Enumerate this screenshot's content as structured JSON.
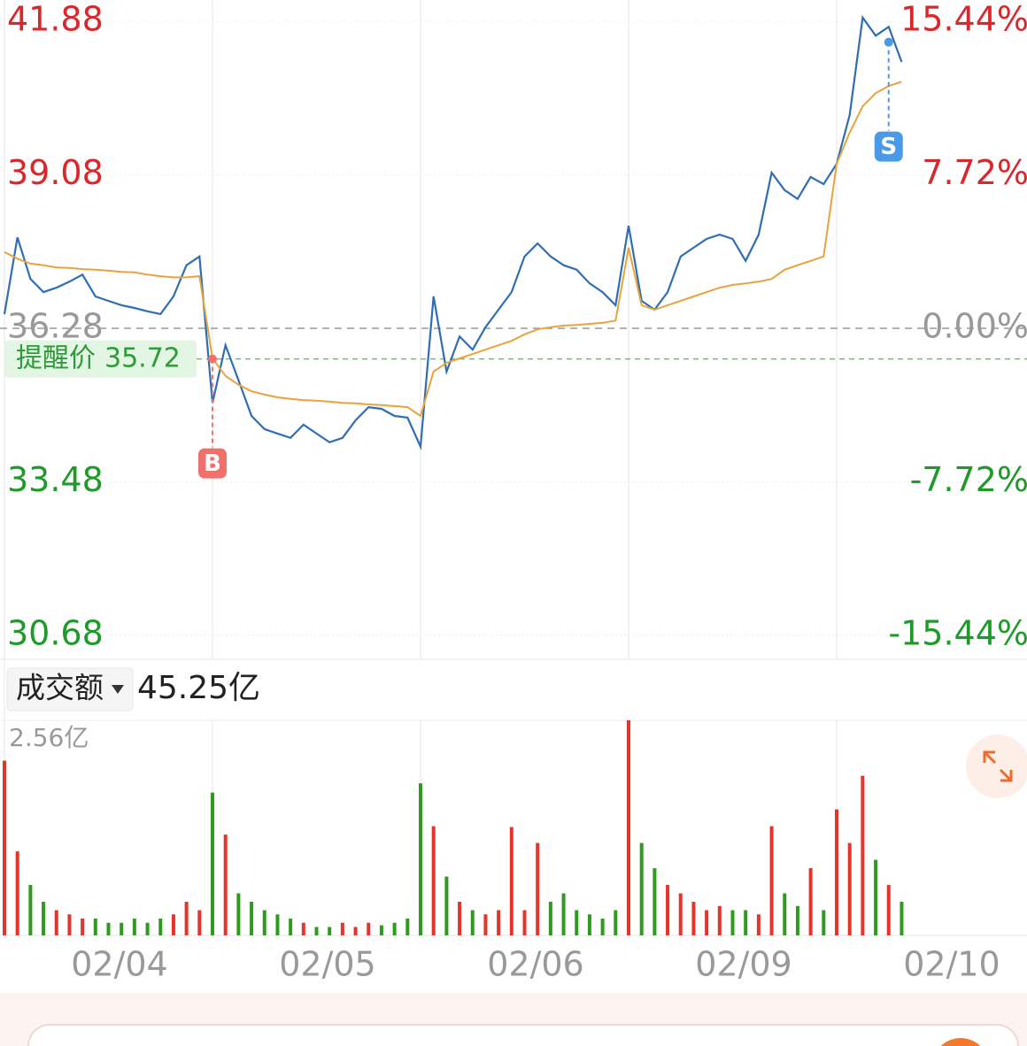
{
  "chart_data": {
    "type": "line",
    "ylim": [
      30.24,
      42.27
    ],
    "yticks": [
      41.88,
      39.08,
      36.28,
      33.48,
      30.68
    ],
    "y2lim": [
      -16.65,
      16.51
    ],
    "y2ticks": [
      {
        "value": 15.44,
        "label": "15.44%"
      },
      {
        "value": 7.72,
        "label": "7.72%"
      },
      {
        "value": 0,
        "label": "0.00%"
      },
      {
        "value": -7.72,
        "label": "-7.72%"
      },
      {
        "value": -15.44,
        "label": "-15.44%"
      }
    ],
    "xlim": [
      0,
      80
    ],
    "xticks": [
      {
        "value": 8.85,
        "label": "02/04"
      },
      {
        "value": 24.85,
        "label": "02/05"
      },
      {
        "value": 40.85,
        "label": "02/06"
      },
      {
        "value": 56.85,
        "label": "02/09"
      },
      {
        "value": 72.85,
        "label": "02/10"
      }
    ],
    "day_separators": [
      16,
      32,
      48,
      64
    ],
    "x": [
      0,
      1,
      2,
      3,
      4,
      5,
      6,
      7,
      8,
      9,
      10,
      11,
      12,
      13,
      14,
      15,
      16,
      17,
      18,
      19,
      20,
      21,
      22,
      23,
      24,
      25,
      26,
      27,
      28,
      29,
      30,
      31,
      32,
      33,
      34,
      35,
      36,
      37,
      38,
      39,
      40,
      41,
      42,
      43,
      44,
      45,
      46,
      47,
      48,
      49,
      50,
      51,
      52,
      53,
      54,
      55,
      56,
      57,
      58,
      59,
      60,
      61,
      62,
      63,
      64,
      65,
      66,
      67,
      68,
      69
    ],
    "series": [
      {
        "color": "#2f6db5",
        "values": [
          36.54,
          37.94,
          37.18,
          36.94,
          37.02,
          37.13,
          37.26,
          36.86,
          36.78,
          36.7,
          36.65,
          36.59,
          36.54,
          36.86,
          37.43,
          37.59,
          34.92,
          35.97,
          35.33,
          34.68,
          34.44,
          34.36,
          34.28,
          34.52,
          34.36,
          34.2,
          34.28,
          34.6,
          34.84,
          34.81,
          34.68,
          34.65,
          34.12,
          36.86,
          35.49,
          36.13,
          35.89,
          36.3,
          36.62,
          36.94,
          37.59,
          37.83,
          37.59,
          37.43,
          37.35,
          37.1,
          36.94,
          36.7,
          38.15,
          36.78,
          36.62,
          36.94,
          37.59,
          37.75,
          37.91,
          37.99,
          37.91,
          37.51,
          37.99,
          39.12,
          38.8,
          38.64,
          39.04,
          38.91,
          39.28,
          40.17,
          41.95,
          41.62,
          41.78,
          41.14
        ]
      },
      {
        "color": "#e8a33c",
        "values": [
          37.67,
          37.55,
          37.46,
          37.43,
          37.39,
          37.38,
          37.36,
          37.35,
          37.33,
          37.31,
          37.3,
          37.26,
          37.23,
          37.21,
          37.21,
          37.23,
          35.73,
          35.41,
          35.25,
          35.13,
          35.07,
          35.02,
          34.99,
          34.97,
          34.96,
          34.94,
          34.92,
          34.91,
          34.89,
          34.88,
          34.86,
          34.84,
          34.68,
          35.49,
          35.65,
          35.73,
          35.81,
          35.89,
          35.97,
          36.05,
          36.17,
          36.26,
          36.3,
          36.33,
          36.34,
          36.36,
          36.38,
          36.42,
          37.75,
          36.7,
          36.62,
          36.7,
          36.78,
          36.86,
          36.94,
          37.02,
          37.07,
          37.1,
          37.13,
          37.18,
          37.35,
          37.43,
          37.51,
          37.59,
          39.28,
          39.85,
          40.33,
          40.57,
          40.7,
          40.78
        ]
      }
    ],
    "reminder": {
      "label": "提醒价",
      "value": 35.72,
      "color": "#2e9b3a"
    },
    "markers": [
      {
        "label": "B",
        "x": 16,
        "value": 35.72,
        "color": "#f0706a"
      },
      {
        "label": "S",
        "x": 68,
        "value": 41.5,
        "color": "#4a9ae8"
      }
    ],
    "volume": {
      "selector": "成交额",
      "total": {
        "value": 45.25,
        "label": "45.25亿"
      },
      "ylim": [
        0,
        2.56
      ],
      "yticks": [
        {
          "value": 2.56,
          "label": "2.56亿"
        }
      ],
      "up_color": "#e8332b",
      "down_color": "#2e9b1e",
      "values": [
        2.08,
        1.0,
        0.6,
        0.4,
        0.3,
        0.25,
        0.2,
        0.2,
        0.15,
        0.15,
        0.2,
        0.15,
        0.2,
        0.25,
        0.4,
        0.3,
        1.7,
        1.2,
        0.5,
        0.4,
        0.3,
        0.25,
        0.2,
        0.15,
        0.1,
        0.1,
        0.15,
        0.1,
        0.15,
        0.12,
        0.15,
        0.2,
        1.81,
        1.3,
        0.7,
        0.4,
        0.3,
        0.25,
        0.3,
        1.29,
        0.3,
        1.1,
        0.4,
        0.5,
        0.3,
        0.25,
        0.2,
        0.3,
        2.56,
        1.1,
        0.8,
        0.6,
        0.5,
        0.4,
        0.3,
        0.35,
        0.3,
        0.3,
        0.25,
        1.3,
        0.5,
        0.35,
        0.8,
        0.3,
        1.5,
        1.1,
        1.9,
        0.9,
        0.6,
        0.4
      ]
    }
  }
}
